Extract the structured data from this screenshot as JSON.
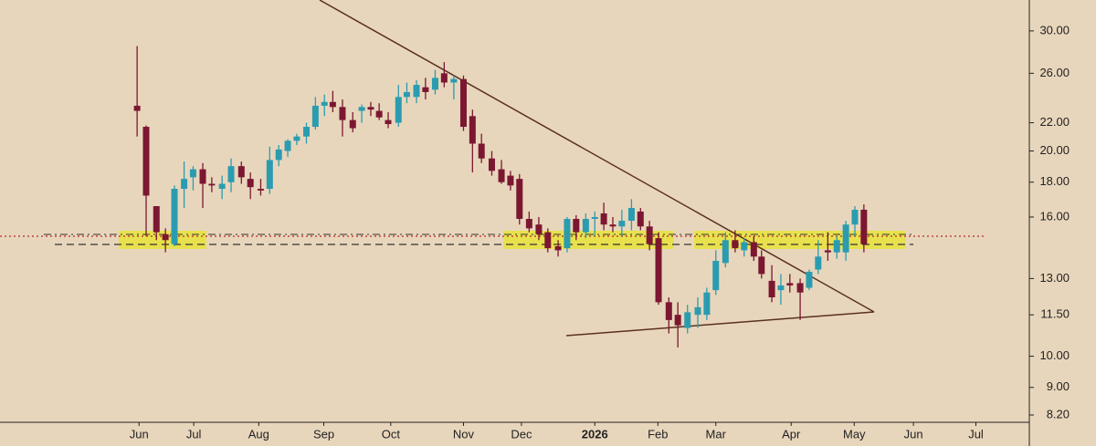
{
  "chart_data": {
    "type": "candlestick",
    "log_scale": true,
    "up_color": "#2b9cb0",
    "down_color": "#7b1731",
    "x": [
      -0.03,
      0.11,
      0.27,
      0.41,
      0.55,
      0.7,
      0.84,
      0.99,
      1.13,
      1.29,
      1.43,
      1.59,
      1.73,
      1.89,
      2.03,
      2.17,
      2.31,
      2.45,
      2.6,
      2.74,
      2.88,
      3.01,
      3.16,
      3.32,
      3.46,
      3.6,
      3.73,
      3.87,
      4.03,
      4.16,
      4.31,
      4.45,
      4.6,
      4.74,
      4.89,
      5.04,
      5.18,
      5.32,
      5.48,
      5.63,
      5.77,
      5.91,
      6.06,
      6.21,
      6.35,
      6.51,
      6.65,
      6.79,
      6.94,
      7.08,
      7.22,
      7.36,
      7.5,
      7.65,
      7.79,
      7.93,
      8.07,
      8.23,
      8.37,
      8.52,
      8.68,
      8.82,
      8.96,
      9.11,
      9.26,
      9.4,
      9.55,
      9.67,
      9.83,
      9.97,
      10.11,
      10.27,
      10.41,
      10.55,
      10.7,
      10.84,
      10.98,
      11.12,
      11.26
    ],
    "open": [
      23.3,
      21.7,
      16.6,
      15.1,
      14.6,
      17.6,
      18.3,
      18.8,
      17.9,
      17.6,
      18.0,
      19.0,
      18.2,
      17.6,
      17.6,
      19.4,
      20.0,
      20.7,
      21.0,
      21.7,
      23.3,
      23.6,
      23.2,
      22.2,
      22.9,
      23.2,
      22.9,
      22.2,
      22.0,
      24.0,
      24.0,
      24.8,
      24.6,
      26.0,
      25.2,
      25.5,
      22.5,
      20.5,
      19.5,
      18.8,
      18.4,
      18.2,
      15.9,
      15.6,
      15.2,
      14.5,
      14.4,
      15.9,
      15.2,
      15.9,
      16.2,
      15.6,
      15.5,
      15.8,
      16.3,
      15.5,
      14.9,
      12.0,
      11.5,
      11.0,
      11.5,
      11.5,
      12.5,
      13.7,
      14.8,
      14.3,
      14.7,
      14.0,
      12.9,
      12.5,
      12.8,
      12.8,
      12.6,
      13.4,
      14.3,
      14.2,
      14.2,
      15.6,
      16.4
    ],
    "high": [
      28.5,
      21.8,
      16.6,
      15.4,
      17.8,
      19.3,
      19.0,
      19.2,
      18.3,
      18.4,
      19.5,
      19.3,
      18.6,
      18.2,
      20.3,
      20.4,
      20.8,
      21.2,
      22.0,
      24.0,
      24.2,
      24.5,
      23.8,
      22.8,
      23.4,
      23.6,
      23.5,
      22.8,
      25.0,
      25.2,
      25.4,
      25.6,
      26.3,
      27.0,
      25.8,
      25.8,
      23.0,
      21.2,
      20.0,
      19.4,
      18.7,
      18.5,
      16.3,
      16.0,
      15.4,
      14.8,
      16.0,
      16.1,
      16.2,
      16.3,
      16.8,
      16.0,
      16.4,
      17.0,
      16.5,
      15.8,
      15.2,
      12.2,
      12.0,
      11.9,
      12.2,
      12.6,
      14.3,
      15.2,
      15.3,
      14.9,
      15.0,
      14.3,
      13.6,
      13.2,
      13.2,
      13.0,
      13.4,
      14.8,
      15.2,
      15.0,
      15.8,
      16.6,
      16.7
    ],
    "low": [
      21.0,
      15.0,
      14.8,
      14.2,
      14.5,
      16.5,
      17.5,
      16.5,
      17.4,
      17.0,
      17.4,
      17.9,
      17.0,
      17.2,
      17.3,
      19.0,
      19.6,
      20.4,
      20.5,
      21.5,
      22.5,
      22.8,
      21.0,
      21.3,
      22.0,
      22.5,
      22.2,
      21.6,
      21.7,
      23.5,
      23.5,
      23.8,
      24.2,
      24.8,
      23.8,
      21.4,
      18.6,
      19.2,
      18.4,
      17.9,
      17.5,
      15.6,
      15.2,
      14.8,
      14.2,
      14.0,
      14.2,
      14.8,
      14.9,
      15.0,
      15.3,
      15.2,
      15.0,
      15.3,
      15.3,
      14.3,
      11.9,
      10.8,
      10.3,
      10.8,
      11.0,
      11.3,
      12.3,
      13.5,
      14.2,
      14.0,
      13.8,
      13.0,
      12.0,
      11.9,
      12.4,
      11.3,
      12.5,
      13.2,
      13.8,
      13.9,
      13.8,
      15.0,
      14.2
    ],
    "close": [
      22.9,
      17.2,
      15.2,
      14.8,
      17.6,
      18.2,
      18.8,
      17.9,
      17.8,
      17.9,
      19.0,
      18.3,
      17.7,
      17.5,
      19.4,
      20.1,
      20.7,
      21.0,
      21.7,
      23.3,
      23.6,
      23.2,
      22.2,
      21.6,
      23.2,
      23.0,
      22.4,
      21.9,
      24.0,
      24.4,
      25.0,
      24.4,
      25.6,
      25.2,
      25.5,
      21.7,
      20.5,
      19.5,
      18.7,
      18.0,
      17.8,
      15.9,
      15.4,
      15.1,
      14.4,
      14.3,
      15.9,
      15.2,
      15.9,
      16.0,
      15.6,
      15.5,
      15.8,
      16.5,
      15.5,
      14.6,
      12.0,
      11.3,
      11.1,
      11.6,
      11.8,
      12.4,
      13.8,
      14.8,
      14.4,
      14.7,
      14.0,
      13.2,
      12.2,
      12.7,
      12.7,
      12.4,
      13.3,
      14.0,
      14.2,
      14.8,
      15.6,
      16.4,
      14.6
    ],
    "xlim": [
      -2.16,
      13.83
    ],
    "ylim": [
      8,
      33.3
    ],
    "xticks": [
      {
        "value": 0,
        "label": "Jun"
      },
      {
        "value": 0.85,
        "label": "Jul"
      },
      {
        "value": 1.86,
        "label": "Aug"
      },
      {
        "value": 2.87,
        "label": "Sep"
      },
      {
        "value": 3.91,
        "label": "Oct"
      },
      {
        "value": 5.04,
        "label": "Nov"
      },
      {
        "value": 5.94,
        "label": "Dec"
      },
      {
        "value": 7.08,
        "label": "2026"
      },
      {
        "value": 8.06,
        "label": "Feb"
      },
      {
        "value": 8.96,
        "label": "Mar"
      },
      {
        "value": 10.13,
        "label": "Apr"
      },
      {
        "value": 11.11,
        "label": "May"
      },
      {
        "value": 12.03,
        "label": "Jun"
      },
      {
        "value": 13.0,
        "label": "Jul"
      }
    ],
    "yticks": [
      {
        "value": 30,
        "label": "30.00"
      },
      {
        "value": 26,
        "label": "26.00"
      },
      {
        "value": 22,
        "label": "22.00"
      },
      {
        "value": 20,
        "label": "20.00"
      },
      {
        "value": 18,
        "label": "18.00"
      },
      {
        "value": 16,
        "label": "16.00"
      },
      {
        "value": 13,
        "label": "13.00"
      },
      {
        "value": 11.5,
        "label": "11.50"
      },
      {
        "value": 10,
        "label": "10.00"
      },
      {
        "value": 9,
        "label": "9.00"
      },
      {
        "value": 8.2,
        "label": "8.20"
      }
    ]
  }
}
